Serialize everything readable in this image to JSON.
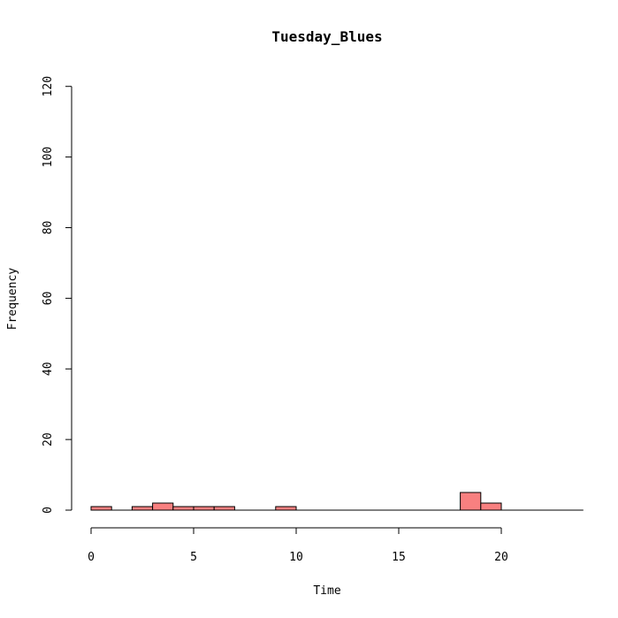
{
  "chart_data": {
    "type": "bar",
    "title": "Tuesday_Blues",
    "xlabel": "Time",
    "ylabel": "Frequency",
    "xlim": [
      0,
      24
    ],
    "ylim": [
      0,
      120
    ],
    "x_ticks": [
      "0",
      "5",
      "10",
      "15",
      "20"
    ],
    "y_ticks": [
      "0",
      "20",
      "40",
      "60",
      "80",
      "100",
      "120"
    ],
    "bar_color": "#F88080",
    "bins": [
      {
        "start": 0,
        "end": 1,
        "count": 1
      },
      {
        "start": 1,
        "end": 2,
        "count": 0
      },
      {
        "start": 2,
        "end": 3,
        "count": 1
      },
      {
        "start": 3,
        "end": 4,
        "count": 2
      },
      {
        "start": 4,
        "end": 5,
        "count": 1
      },
      {
        "start": 5,
        "end": 6,
        "count": 1
      },
      {
        "start": 6,
        "end": 7,
        "count": 1
      },
      {
        "start": 7,
        "end": 8,
        "count": 0
      },
      {
        "start": 8,
        "end": 9,
        "count": 0
      },
      {
        "start": 9,
        "end": 10,
        "count": 1
      },
      {
        "start": 10,
        "end": 11,
        "count": 0
      },
      {
        "start": 11,
        "end": 12,
        "count": 0
      },
      {
        "start": 12,
        "end": 13,
        "count": 0
      },
      {
        "start": 13,
        "end": 14,
        "count": 0
      },
      {
        "start": 14,
        "end": 15,
        "count": 0
      },
      {
        "start": 15,
        "end": 16,
        "count": 0
      },
      {
        "start": 16,
        "end": 17,
        "count": 0
      },
      {
        "start": 17,
        "end": 18,
        "count": 0
      },
      {
        "start": 18,
        "end": 19,
        "count": 5
      },
      {
        "start": 19,
        "end": 20,
        "count": 2
      },
      {
        "start": 20,
        "end": 21,
        "count": 0
      },
      {
        "start": 21,
        "end": 22,
        "count": 0
      },
      {
        "start": 22,
        "end": 23,
        "count": 0
      },
      {
        "start": 23,
        "end": 24,
        "count": 0
      }
    ]
  }
}
